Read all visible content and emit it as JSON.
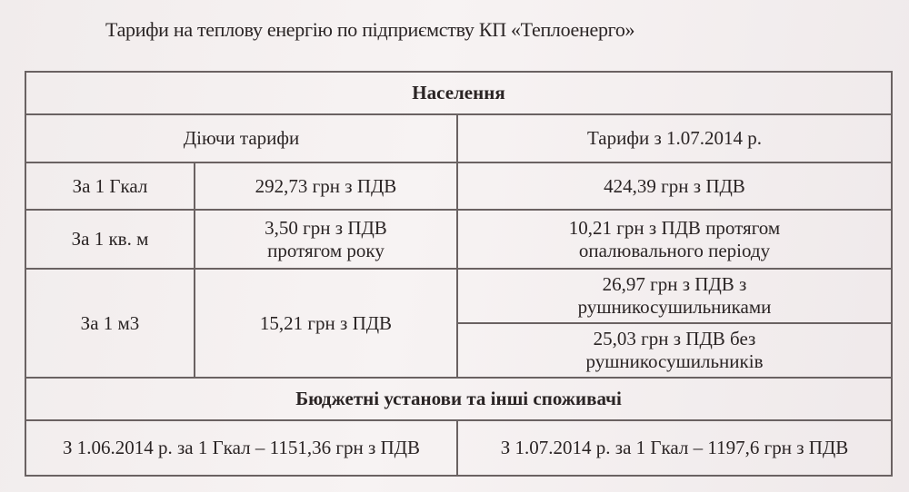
{
  "title": "Тарифи на теплову енергію по підприємству КП «Теплоенерго»",
  "table": {
    "section1": "Населення",
    "col_current": "Діючи тарифи",
    "col_new": "Тарифи з 1.07.2014 р.",
    "rows": [
      {
        "unit": "За 1 Гкал",
        "current": "292,73 грн з ПДВ",
        "new": [
          "424,39 грн з ПДВ"
        ]
      },
      {
        "unit": "За 1 кв. м",
        "current": "3,50 грн з ПДВ протягом року",
        "new": [
          "10,21 грн з ПДВ протягом опалювального періоду"
        ]
      },
      {
        "unit": "За 1 м3",
        "current": "15,21 грн з ПДВ",
        "new": [
          "26,97 грн з ПДВ з рушникосушильниками",
          "25,03 грн з ПДВ без рушникосушильників"
        ]
      }
    ],
    "section2": "Бюджетні установи та інші споживачі",
    "budget_current": "З 1.06.2014 р. за 1 Гкал – 1151,36 грн з ПДВ",
    "budget_new": "З 1.07.2014 р. за 1 Гкал – 1197,6 грн з ПДВ"
  }
}
